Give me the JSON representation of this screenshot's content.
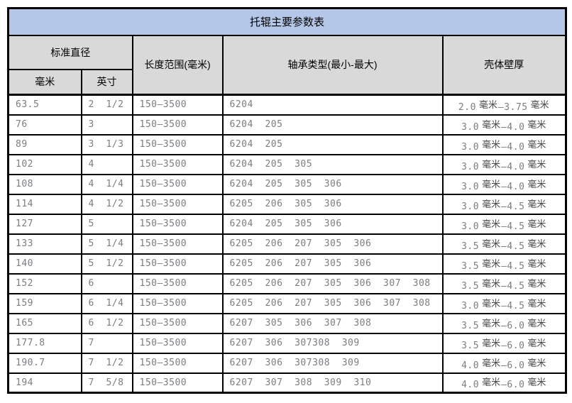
{
  "page": {
    "title": "托辊主要参数表"
  },
  "table": {
    "header": {
      "standard_diameter": "标准直径",
      "mm": "毫米",
      "inch": "英寸",
      "length_range": "长度范围(毫米)",
      "bearing_type": "轴承类型(最小-最大)",
      "wall_thickness": "壳体壁厚"
    },
    "wall_unit": "毫米",
    "wall_dash": "–",
    "rows": [
      {
        "mm": "63.5",
        "inch": "2  1/2",
        "length": "150–3500",
        "bearings": [
          "6204"
        ],
        "wall": [
          "2.0",
          "3.75"
        ]
      },
      {
        "mm": "76",
        "inch": "3",
        "length": "150–3500",
        "bearings": [
          "6204",
          "205"
        ],
        "wall": [
          "3.0",
          "4.0"
        ]
      },
      {
        "mm": "89",
        "inch": "3  1/3",
        "length": "150–3500",
        "bearings": [
          "6204",
          "205"
        ],
        "wall": [
          "3.0",
          "4.0"
        ]
      },
      {
        "mm": "102",
        "inch": "4",
        "length": "150–3500",
        "bearings": [
          "6204",
          "205",
          "305"
        ],
        "wall": [
          "3.0",
          "4.0"
        ]
      },
      {
        "mm": "108",
        "inch": "4  1/4",
        "length": "150–3500",
        "bearings": [
          "6204",
          "205",
          "305",
          "306"
        ],
        "wall": [
          "3.0",
          "4.0"
        ]
      },
      {
        "mm": "114",
        "inch": "4  1/2",
        "length": "150–3500",
        "bearings": [
          "6205",
          "206",
          "305",
          "306"
        ],
        "wall": [
          "3.0",
          "4.5"
        ]
      },
      {
        "mm": "127",
        "inch": "5",
        "length": "150–3500",
        "bearings": [
          "6204",
          "205",
          "305",
          "306"
        ],
        "wall": [
          "3.0",
          "4.5"
        ]
      },
      {
        "mm": "133",
        "inch": "5  1/4",
        "length": "150–3500",
        "bearings": [
          "6205",
          "206",
          "207",
          "305",
          "306"
        ],
        "wall": [
          "3.5",
          "4.5"
        ]
      },
      {
        "mm": "140",
        "inch": "5  1/2",
        "length": "150–3500",
        "bearings": [
          "6205",
          "206",
          "207",
          "305",
          "306"
        ],
        "wall": [
          "3.5",
          "4.5"
        ]
      },
      {
        "mm": "152",
        "inch": "6",
        "length": "150–3500",
        "bearings": [
          "6205",
          "206",
          "207",
          "305",
          "306",
          "307",
          "308"
        ],
        "wall": [
          "3.5",
          "4.5"
        ]
      },
      {
        "mm": "159",
        "inch": "6  1/4",
        "length": "150–3500",
        "bearings": [
          "6205",
          "206",
          "207",
          "305",
          "306",
          "307",
          "308"
        ],
        "wall": [
          "3.0",
          "4.5"
        ]
      },
      {
        "mm": "165",
        "inch": "6  1/2",
        "length": "150–3500",
        "bearings": [
          "6207",
          "305",
          "306",
          "307",
          "308"
        ],
        "wall": [
          "3.5",
          "6.0"
        ]
      },
      {
        "mm": "177.8",
        "inch": "7",
        "length": "150–3500",
        "bearings": [
          "6207",
          "306",
          "307308",
          "309"
        ],
        "wall": [
          "3.5",
          "6.0"
        ]
      },
      {
        "mm": "190.7",
        "inch": "7  1/2",
        "length": "150–3500",
        "bearings": [
          "6207",
          "306",
          "307308",
          "309"
        ],
        "wall": [
          "4.0",
          "6.0"
        ]
      },
      {
        "mm": "194",
        "inch": "7  5/8",
        "length": "150–3500",
        "bearings": [
          "6207",
          "307",
          "308",
          "309",
          "310"
        ],
        "wall": [
          "4.0",
          "6.0"
        ]
      }
    ]
  },
  "colors": {
    "title_bg": "#b4c7e7",
    "header_bg": "#d9d9d9",
    "border": "#000000",
    "data_text": "#7d7d82",
    "unit_text": "#4a4a4a"
  }
}
